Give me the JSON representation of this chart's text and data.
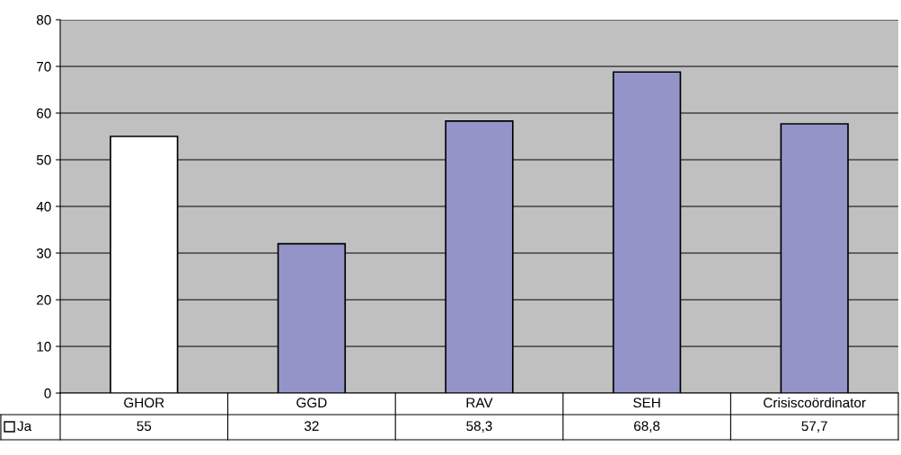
{
  "chart_data": {
    "type": "bar",
    "categories": [
      "GHOR",
      "GGD",
      "RAV",
      "SEH",
      "Crisiscoördinator"
    ],
    "series": [
      {
        "name": "Ja",
        "color": "#ffffff",
        "colors": [
          "#ffffff",
          "#9494c8",
          "#9494c8",
          "#9494c8",
          "#9494c8"
        ],
        "values": [
          55,
          32,
          58.3,
          68.8,
          57.7
        ],
        "value_labels": [
          "55",
          "32",
          "58,3",
          "68,8",
          "57,7"
        ]
      }
    ],
    "ylim": [
      0,
      80
    ],
    "yticks": [
      0,
      10,
      20,
      30,
      40,
      50,
      60,
      70,
      80
    ],
    "grid": "y",
    "legend": "bottom"
  }
}
